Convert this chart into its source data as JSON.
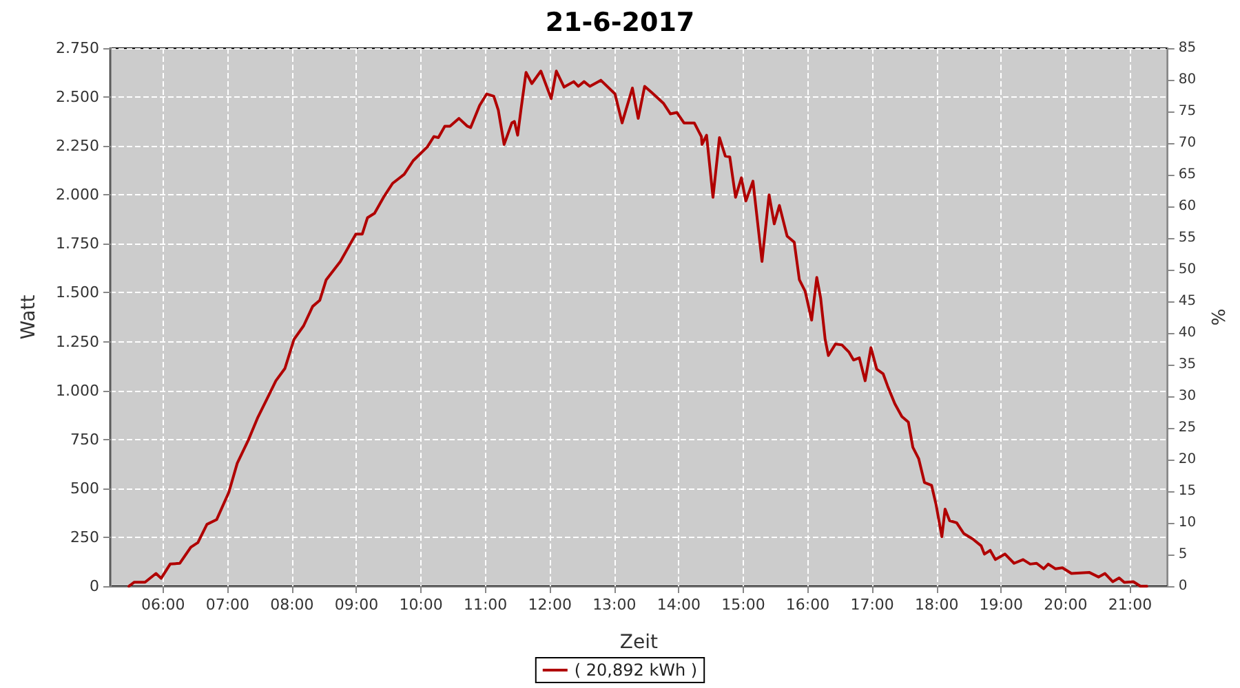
{
  "chart_data": {
    "type": "line",
    "title": "21-6-2017",
    "xlabel": "Zeit",
    "ylabel": "Watt",
    "y2label": "%",
    "xlim": [
      5.18,
      21.58
    ],
    "xticks": [
      {
        "value": 6,
        "label": "06:00"
      },
      {
        "value": 7,
        "label": "07:00"
      },
      {
        "value": 8,
        "label": "08:00"
      },
      {
        "value": 9,
        "label": "09:00"
      },
      {
        "value": 10,
        "label": "10:00"
      },
      {
        "value": 11,
        "label": "11:00"
      },
      {
        "value": 12,
        "label": "12:00"
      },
      {
        "value": 13,
        "label": "13:00"
      },
      {
        "value": 14,
        "label": "14:00"
      },
      {
        "value": 15,
        "label": "15:00"
      },
      {
        "value": 16,
        "label": "16:00"
      },
      {
        "value": 17,
        "label": "17:00"
      },
      {
        "value": 18,
        "label": "18:00"
      },
      {
        "value": 19,
        "label": "19:00"
      },
      {
        "value": 20,
        "label": "20:00"
      },
      {
        "value": 21,
        "label": "21:00"
      }
    ],
    "ylim": [
      0,
      2750
    ],
    "yticks": [
      0,
      250,
      500,
      750,
      {
        "value": 1000,
        "label": "1.000"
      },
      {
        "value": 1250,
        "label": "1.250"
      },
      {
        "value": 1500,
        "label": "1.500"
      },
      {
        "value": 1750,
        "label": "1.750"
      },
      {
        "value": 2000,
        "label": "2.000"
      },
      {
        "value": 2250,
        "label": "2.250"
      },
      {
        "value": 2500,
        "label": "2.500"
      },
      {
        "value": 2750,
        "label": "2.750"
      }
    ],
    "y2lim": [
      0,
      85
    ],
    "y2ticks": [
      0,
      5,
      10,
      15,
      20,
      25,
      30,
      35,
      40,
      45,
      50,
      55,
      60,
      65,
      70,
      75,
      80,
      85
    ],
    "grid": true,
    "legend": "bottom",
    "marker": "none",
    "line_style": "solid",
    "series": [
      {
        "name": "( 20,892 kWh )",
        "color": "#b00000",
        "x": [
          5.47,
          5.55,
          5.72,
          5.89,
          5.97,
          6.11,
          6.26,
          6.43,
          6.54,
          6.68,
          6.83,
          7.02,
          7.15,
          7.32,
          7.47,
          7.61,
          7.75,
          7.89,
          8.03,
          8.18,
          8.32,
          8.43,
          8.53,
          8.75,
          8.99,
          9.09,
          9.17,
          9.28,
          9.42,
          9.56,
          9.74,
          9.88,
          10.1,
          10.2,
          10.27,
          10.37,
          10.45,
          10.59,
          10.72,
          10.77,
          10.91,
          11.02,
          11.13,
          11.2,
          11.29,
          11.41,
          11.45,
          11.5,
          11.55,
          11.63,
          11.72,
          11.86,
          12.02,
          12.1,
          12.22,
          12.37,
          12.44,
          12.53,
          12.62,
          12.79,
          13.01,
          13.12,
          13.28,
          13.37,
          13.47,
          13.58,
          13.76,
          13.87,
          13.97,
          14.08,
          14.24,
          14.35,
          14.36,
          14.43,
          14.53,
          14.63,
          14.72,
          14.79,
          14.88,
          14.97,
          15.04,
          15.15,
          15.29,
          15.4,
          15.48,
          15.56,
          15.68,
          15.79,
          15.87,
          15.96,
          16.06,
          16.14,
          16.2,
          16.27,
          16.32,
          16.43,
          16.53,
          16.64,
          16.71,
          16.8,
          16.89,
          16.98,
          17.07,
          17.17,
          17.24,
          17.35,
          17.46,
          17.56,
          17.63,
          17.72,
          17.81,
          17.92,
          17.99,
          18.08,
          18.13,
          18.2,
          18.31,
          18.42,
          18.56,
          18.69,
          18.74,
          18.83,
          18.91,
          19.06,
          19.2,
          19.34,
          19.45,
          19.55,
          19.66,
          19.73,
          19.84,
          19.95,
          20.09,
          20.37,
          20.51,
          20.61,
          20.73,
          20.83,
          20.91,
          21.05,
          21.16,
          21.26
        ],
        "values": [
          0,
          20,
          20,
          65,
          40,
          113,
          117,
          199,
          223,
          316,
          340,
          480,
          628,
          745,
          863,
          956,
          1050,
          1113,
          1261,
          1331,
          1430,
          1461,
          1566,
          1660,
          1800,
          1800,
          1883,
          1906,
          1988,
          2059,
          2105,
          2175,
          2246,
          2298,
          2293,
          2351,
          2351,
          2391,
          2351,
          2344,
          2457,
          2516,
          2504,
          2433,
          2258,
          2368,
          2375,
          2305,
          2433,
          2626,
          2569,
          2633,
          2492,
          2633,
          2551,
          2579,
          2555,
          2579,
          2555,
          2586,
          2516,
          2368,
          2546,
          2391,
          2555,
          2523,
          2469,
          2414,
          2421,
          2368,
          2368,
          2298,
          2258,
          2305,
          1988,
          2293,
          2199,
          2194,
          1988,
          2087,
          1969,
          2070,
          1660,
          2000,
          1852,
          1946,
          1789,
          1758,
          1566,
          1507,
          1360,
          1578,
          1472,
          1261,
          1179,
          1238,
          1233,
          1196,
          1156,
          1167,
          1050,
          1219,
          1109,
          1085,
          1022,
          933,
          867,
          839,
          710,
          652,
          530,
          516,
          417,
          253,
          394,
          335,
          324,
          269,
          241,
          206,
          164,
          183,
          136,
          164,
          117,
          136,
          113,
          117,
          89,
          113,
          89,
          94,
          65,
          70,
          47,
          65,
          23,
          42,
          19,
          23,
          0,
          0
        ]
      }
    ]
  }
}
